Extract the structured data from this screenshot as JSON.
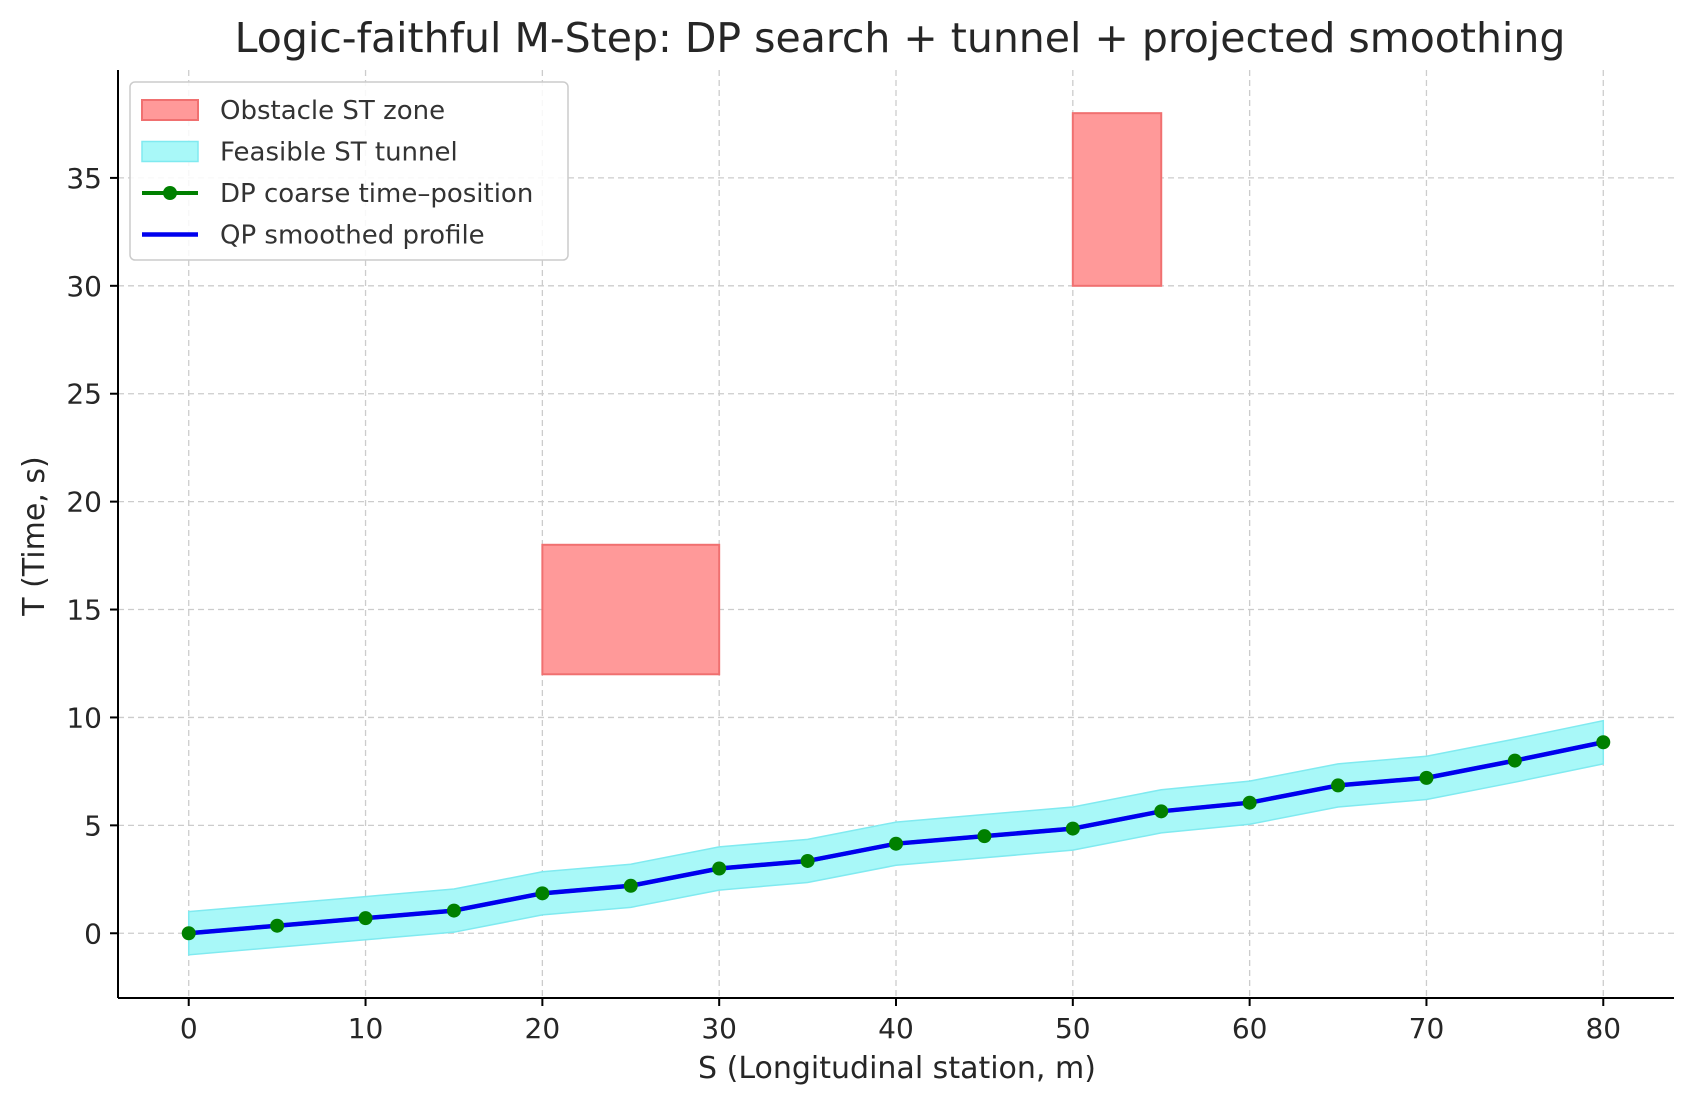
{
  "chart_data": {
    "type": "line",
    "title": "Logic-faithful M-Step: DP search + tunnel + projected smoothing",
    "xlabel": "S (Longitudinal station, m)",
    "ylabel": "T (Time, s)",
    "xlim": [
      -4,
      84
    ],
    "ylim": [
      -3,
      40
    ],
    "xticks": [
      0,
      10,
      20,
      30,
      40,
      50,
      60,
      70,
      80
    ],
    "yticks": [
      0,
      5,
      10,
      15,
      20,
      25,
      30,
      35
    ],
    "grid": true,
    "legend_position": "top-left",
    "colors": {
      "obstacle_fill": "#ff9999",
      "obstacle_edge": "#f07070",
      "tunnel_fill": "#a8f8f8",
      "tunnel_edge": "#80eaf0",
      "dp": "#008000",
      "qp": "#0000ee"
    },
    "obstacles": [
      {
        "name": "Obstacle ST zone",
        "s_range": [
          20,
          30
        ],
        "t_range": [
          12,
          18
        ]
      },
      {
        "name": "Obstacle ST zone",
        "s_range": [
          50,
          55
        ],
        "t_range": [
          30,
          38
        ]
      }
    ],
    "tunnel": {
      "name": "Feasible ST tunnel",
      "half_width": 1
    },
    "x": [
      0,
      5,
      10,
      15,
      20,
      25,
      30,
      35,
      40,
      45,
      50,
      55,
      60,
      65,
      70,
      75,
      80
    ],
    "series": [
      {
        "name": "DP coarse time–position",
        "marker": "circle",
        "values": [
          0,
          0.35,
          0.7,
          1.05,
          1.85,
          2.2,
          3.0,
          3.35,
          4.15,
          4.5,
          4.85,
          5.65,
          6.05,
          6.85,
          7.2,
          8.0,
          8.85
        ]
      },
      {
        "name": "QP smoothed profile",
        "marker": "none",
        "values": [
          0,
          0.35,
          0.7,
          1.05,
          1.85,
          2.2,
          3.0,
          3.35,
          4.15,
          4.5,
          4.85,
          5.65,
          6.05,
          6.85,
          7.2,
          8.0,
          8.85
        ]
      }
    ],
    "legend": [
      {
        "label": "Obstacle ST zone",
        "kind": "patch-obstacle"
      },
      {
        "label": "Feasible ST tunnel",
        "kind": "patch-tunnel"
      },
      {
        "label": "DP coarse time–position",
        "kind": "line-dp"
      },
      {
        "label": "QP smoothed profile",
        "kind": "line-qp"
      }
    ]
  }
}
